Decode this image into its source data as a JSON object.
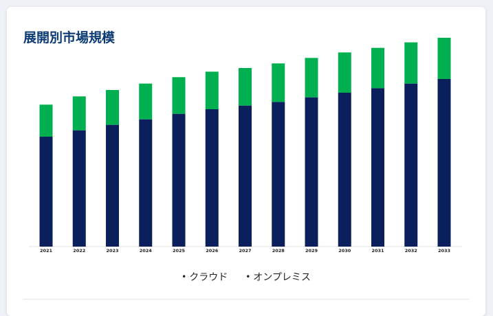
{
  "card": {
    "title": "展開別市場規模"
  },
  "chart_data": {
    "type": "bar",
    "stacked": true,
    "categories": [
      "2021",
      "2022",
      "2023",
      "2024",
      "2025",
      "2026",
      "2027",
      "2028",
      "2029",
      "2030",
      "2031",
      "2032",
      "2033"
    ],
    "series": [
      {
        "name": "クラウド",
        "color": "#0a1f5c",
        "values": [
          120,
          127,
          133,
          139,
          145,
          150,
          154,
          158,
          163,
          168,
          173,
          178,
          183
        ]
      },
      {
        "name": "オンプレミス",
        "color": "#00b050",
        "values": [
          35,
          37,
          38,
          39,
          40,
          41,
          41,
          42,
          43,
          44,
          44,
          45,
          45
        ]
      }
    ],
    "ylim": [
      0,
      240
    ],
    "grid": false,
    "legend_position": "bottom"
  },
  "legend": {
    "bullet": "•"
  }
}
